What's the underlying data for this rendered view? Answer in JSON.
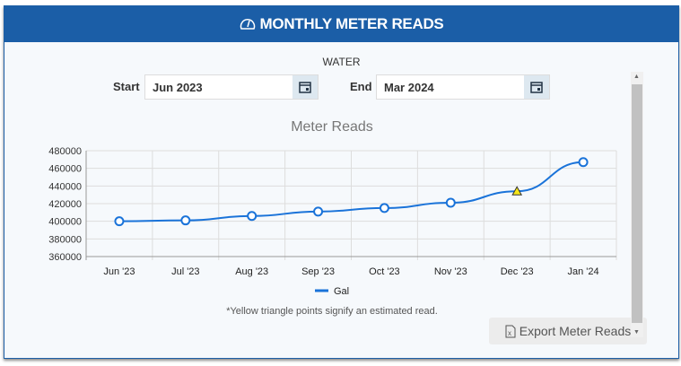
{
  "header": {
    "title": "MONTHLY METER READS",
    "icon": "gauge-icon"
  },
  "utility": "WATER",
  "filters": {
    "start_label": "Start",
    "start_value": "Jun 2023",
    "end_label": "End",
    "end_value": "Mar 2024"
  },
  "chart_data": {
    "type": "line",
    "title": "Meter Reads",
    "categories": [
      "Jun '23",
      "Jul '23",
      "Aug '23",
      "Sep '23",
      "Oct '23",
      "Nov '23",
      "Dec '23",
      "Jan '24"
    ],
    "series": [
      {
        "name": "Gal",
        "values": [
          400000,
          401000,
          406000,
          411000,
          415000,
          421000,
          434000,
          467000
        ],
        "estimated": [
          false,
          false,
          false,
          false,
          false,
          false,
          true,
          false
        ],
        "color": "#1a73d9"
      }
    ],
    "ylim": [
      360000,
      480000
    ],
    "yticks": [
      "480000",
      "460000",
      "440000",
      "420000",
      "400000",
      "380000",
      "360000"
    ],
    "grid": true,
    "legend": "bottom",
    "estimated_color": "#f5e61a"
  },
  "note": "*Yellow triangle points signify an estimated read.",
  "export_label": "Export Meter Reads"
}
